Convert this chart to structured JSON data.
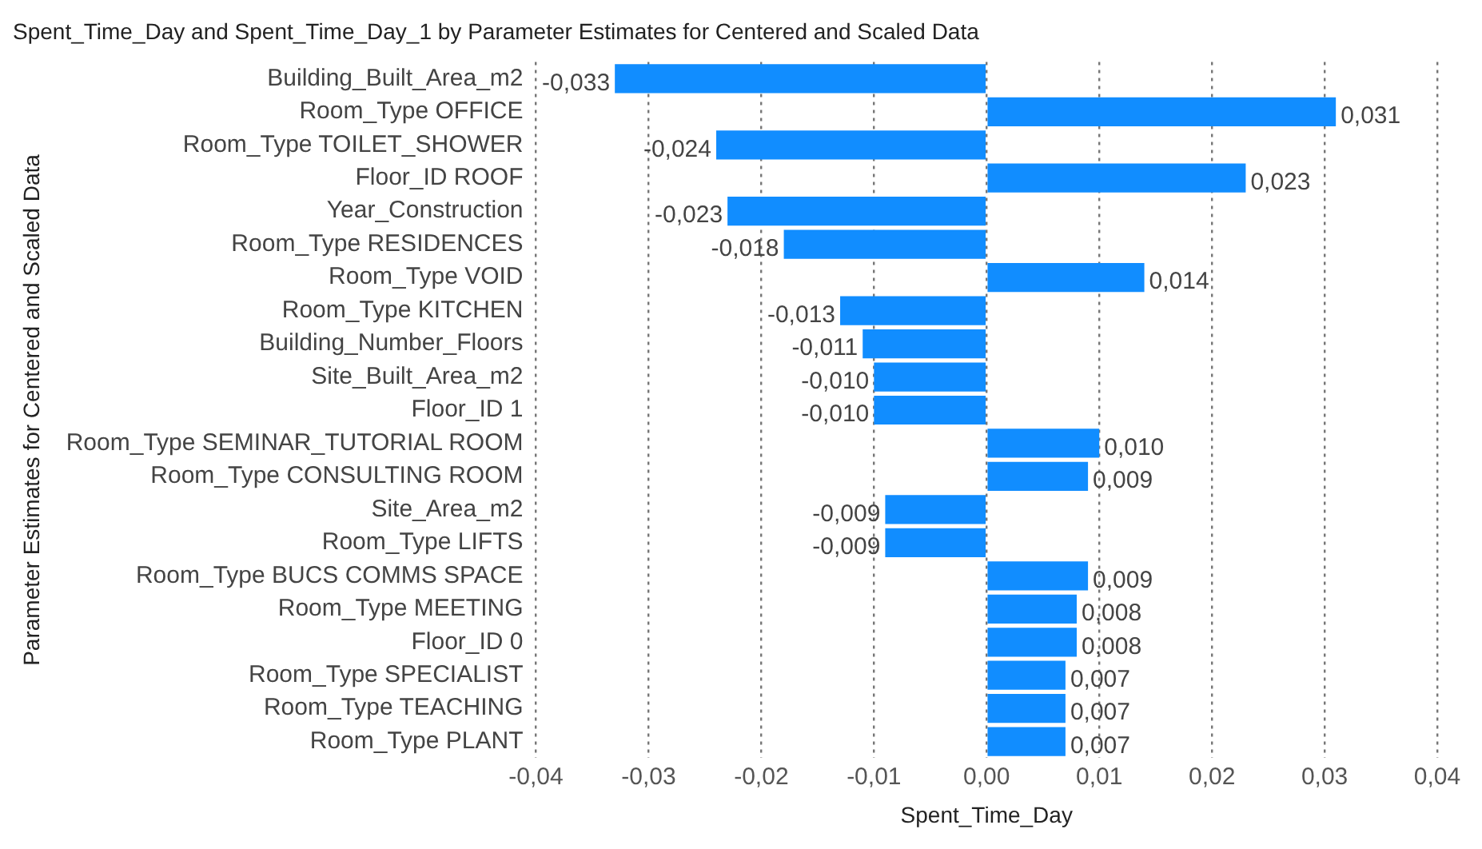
{
  "chart_data": {
    "type": "bar",
    "orientation": "horizontal",
    "title": "Spent_Time_Day and Spent_Time_Day_1 by Parameter Estimates for Centered and Scaled Data",
    "xlabel": "Spent_Time_Day",
    "ylabel": "Parameter Estimates for Centered and Scaled Data",
    "categories": [
      "Building_Built_Area_m2",
      "Room_Type OFFICE",
      "Room_Type TOILET_SHOWER",
      "Floor_ID ROOF",
      "Year_Construction",
      "Room_Type RESIDENCES",
      "Room_Type VOID",
      "Room_Type KITCHEN",
      "Building_Number_Floors",
      "Site_Built_Area_m2",
      "Floor_ID 1",
      "Room_Type SEMINAR_TUTORIAL ROOM",
      "Room_Type CONSULTING ROOM",
      "Site_Area_m2",
      "Room_Type LIFTS",
      "Room_Type BUCS COMMS SPACE",
      "Room_Type MEETING",
      "Floor_ID 0",
      "Room_Type SPECIALIST",
      "Room_Type TEACHING",
      "Room_Type PLANT"
    ],
    "values": [
      -0.033,
      0.031,
      -0.024,
      0.023,
      -0.023,
      -0.018,
      0.014,
      -0.013,
      -0.011,
      -0.01,
      -0.01,
      0.01,
      0.009,
      -0.009,
      -0.009,
      0.009,
      0.008,
      0.008,
      0.007,
      0.007,
      0.007
    ],
    "value_labels": [
      "-0,033",
      "0,031",
      "-0,024",
      "0,023",
      "-0,023",
      "-0,018",
      "0,014",
      "-0,013",
      "-0,011",
      "-0,010",
      "-0,010",
      "0,010",
      "0,009",
      "-0,009",
      "-0,009",
      "0,009",
      "0,008",
      "0,008",
      "0,007",
      "0,007",
      "0,007"
    ],
    "color": "#118dff",
    "xlim": [
      -0.04,
      0.04
    ],
    "xticks": [
      {
        "value": -0.04,
        "label": "-0,04"
      },
      {
        "value": -0.03,
        "label": "-0,03"
      },
      {
        "value": -0.02,
        "label": "-0,02"
      },
      {
        "value": -0.01,
        "label": "-0,01"
      },
      {
        "value": 0,
        "label": "0,00"
      },
      {
        "value": 0.01,
        "label": "0,01"
      },
      {
        "value": 0.02,
        "label": "0,02"
      },
      {
        "value": 0.03,
        "label": "0,03"
      },
      {
        "value": 0.04,
        "label": "0,04"
      }
    ],
    "grid": "x",
    "legend": false
  }
}
